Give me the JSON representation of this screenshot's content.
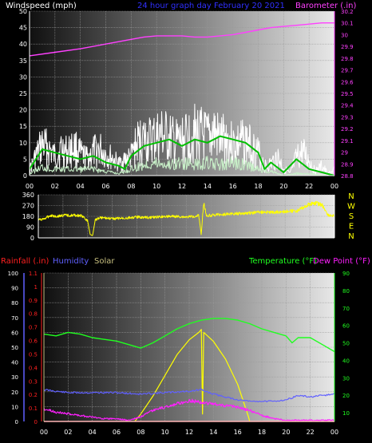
{
  "chart_data": [
    {
      "type": "line",
      "title": "24 hour graph day   February 20 2021",
      "left_label": "Windspeed (mph)",
      "right_label": "Barometer (.in)",
      "x_ticks": [
        "00",
        "02",
        "04",
        "06",
        "08",
        "10",
        "12",
        "14",
        "16",
        "18",
        "20",
        "22",
        "00"
      ],
      "y_left_ticks": [
        "0",
        "5",
        "10",
        "15",
        "20",
        "25",
        "30",
        "35",
        "40",
        "45",
        "50"
      ],
      "y_right_ticks": [
        "28.8",
        "28.9",
        "29",
        "29.1",
        "29.2",
        "29.3",
        "29.4",
        "29.5",
        "29.6",
        "29.7",
        "29.8",
        "29.9",
        "30",
        "30.1",
        "30.2"
      ],
      "ylim_left": [
        0,
        50
      ],
      "ylim_right": [
        28.8,
        30.2
      ],
      "xlim": [
        0,
        24
      ],
      "colors": {
        "gust": "#ffffff",
        "speed_avg": "#00c000",
        "speed_low": "#c8f0c8",
        "barometer": "#ff40ff",
        "axis": "#ff40ff"
      },
      "series": {
        "gust_envelope": {
          "x": [
            0,
            0.5,
            1,
            1.5,
            2,
            2.5,
            3,
            3.5,
            4,
            4.5,
            5,
            5.5,
            6,
            6.5,
            7,
            7.5,
            8,
            8.5,
            9,
            9.5,
            10,
            10.5,
            11,
            11.5,
            12,
            12.5,
            13,
            13.5,
            14,
            14.5,
            15,
            15.5,
            16,
            16.5,
            17,
            17.5,
            18,
            18.5,
            19,
            19.5,
            20,
            20.5,
            21,
            21.5,
            22,
            22.5,
            23,
            23.5,
            24
          ],
          "values": [
            3,
            10,
            16,
            14,
            10,
            14,
            12,
            15,
            11,
            9,
            12,
            14,
            11,
            9,
            6,
            8,
            10,
            17,
            19,
            18,
            20,
            21,
            19,
            17,
            18,
            20,
            22,
            21,
            19,
            23,
            18,
            20,
            16,
            17,
            18,
            15,
            12,
            5,
            6,
            10,
            4,
            1,
            9,
            12,
            8,
            2,
            5,
            1,
            3
          ]
        },
        "speed_avg": {
          "x": [
            0,
            1,
            2,
            3,
            4,
            5,
            6,
            7,
            7.5,
            8,
            9,
            10,
            11,
            12,
            13,
            14,
            15,
            16,
            17,
            18,
            18.5,
            19,
            20,
            21,
            22,
            23,
            24
          ],
          "values": [
            2,
            8,
            7,
            6,
            5,
            6,
            4,
            3,
            2,
            6,
            9,
            10,
            11,
            9,
            11,
            10,
            12,
            11,
            10,
            7,
            2,
            4,
            1,
            5,
            2,
            1,
            0
          ]
        },
        "speed_low": {
          "x": [
            0,
            1,
            2,
            3,
            4,
            5,
            6,
            7,
            8,
            9,
            10,
            11,
            12,
            13,
            14,
            15,
            16,
            17,
            18,
            19,
            20,
            21,
            22,
            23,
            24
          ],
          "values": [
            1,
            4,
            3,
            3,
            3,
            3,
            2,
            1,
            3,
            5,
            6,
            5,
            6,
            5,
            6,
            5,
            6,
            5,
            3,
            2,
            0,
            1,
            1,
            0,
            0
          ]
        },
        "barometer": {
          "x": [
            0,
            2,
            4,
            6,
            8,
            9,
            10,
            11,
            12,
            13,
            14,
            15,
            16,
            17,
            18,
            19,
            20,
            21,
            22,
            23,
            24
          ],
          "values": [
            29.82,
            29.85,
            29.88,
            29.92,
            29.96,
            29.98,
            29.99,
            29.99,
            29.99,
            29.98,
            29.98,
            29.99,
            30.0,
            30.02,
            30.04,
            30.06,
            30.07,
            30.08,
            30.09,
            30.1,
            30.1
          ]
        }
      }
    },
    {
      "type": "line",
      "title": "",
      "y_left_ticks": [
        "0",
        "90",
        "180",
        "270",
        "360"
      ],
      "ylim": [
        0,
        360
      ],
      "right_letters": [
        "N",
        "W",
        "S",
        "E",
        "N"
      ],
      "colors": {
        "direction": "#ffff00",
        "letters": "#ffff00"
      },
      "series": {
        "direction": {
          "x": [
            0,
            0.5,
            1,
            1.5,
            2,
            3,
            3.5,
            4,
            4.2,
            4.4,
            4.6,
            5,
            6,
            7,
            8,
            9,
            10,
            11,
            12,
            12.5,
            13,
            13.2,
            13.4,
            13.6,
            14,
            15,
            16,
            17,
            18,
            19,
            20,
            21,
            22,
            22.5,
            23,
            23.5,
            24
          ],
          "values": [
            160,
            170,
            200,
            190,
            200,
            200,
            195,
            150,
            30,
            20,
            160,
            180,
            170,
            175,
            185,
            180,
            190,
            190,
            185,
            190,
            200,
            30,
            320,
            200,
            200,
            210,
            215,
            220,
            230,
            225,
            235,
            240,
            300,
            310,
            290,
            200,
            195
          ]
        }
      }
    },
    {
      "type": "line",
      "title": "",
      "left_labels": [
        "Rainfall (.in)",
        "Humidity",
        "Solar"
      ],
      "right_labels": [
        "Temperature (°F)",
        "Dew Point (°F)"
      ],
      "x_ticks": [
        "00",
        "02",
        "04",
        "06",
        "08",
        "10",
        "12",
        "14",
        "16",
        "18",
        "20",
        "22",
        "00"
      ],
      "humidity_ticks": [
        "0",
        "10",
        "20",
        "30",
        "40",
        "50",
        "60",
        "70",
        "80",
        "90",
        "100"
      ],
      "rain_ticks": [
        "0",
        "0.1",
        "0.2",
        "0.3",
        "0.4",
        "0.5",
        "0.6",
        "0.7",
        "0.8",
        "0.9",
        "1",
        "1.1"
      ],
      "temp_ticks": [
        "10",
        "20",
        "30",
        "40",
        "50",
        "60",
        "70",
        "80",
        "90"
      ],
      "ylim_humidity": [
        0,
        100
      ],
      "ylim_rain": [
        0,
        1.1
      ],
      "ylim_temp": [
        5,
        90
      ],
      "colors": {
        "rain": "#ff2020",
        "humidity": "#6060ff",
        "solar": "#c8c080",
        "temperature": "#20ff20",
        "dewpoint": "#ff20ff",
        "solar_line": "#ffff00"
      },
      "series": {
        "temperature": {
          "x": [
            0,
            1,
            2,
            3,
            4,
            5,
            6,
            7,
            8,
            9,
            10,
            11,
            12,
            13,
            14,
            15,
            16,
            17,
            18,
            19,
            20,
            20.5,
            21,
            22,
            23,
            24
          ],
          "values": [
            55,
            54,
            56,
            55,
            53,
            52,
            51,
            49,
            47,
            50,
            54,
            58,
            61,
            63,
            64,
            64,
            63,
            61,
            58,
            56,
            54,
            50,
            53,
            53,
            49,
            45
          ]
        },
        "dewpoint": {
          "x": [
            0,
            1,
            2,
            3,
            4,
            5,
            6,
            7,
            8,
            9,
            10,
            11,
            12,
            13,
            14,
            15,
            16,
            17,
            18,
            19,
            20,
            21,
            22,
            23,
            24
          ],
          "values": [
            13,
            11,
            10,
            9,
            8,
            7,
            7,
            6,
            8,
            12,
            14,
            16,
            18,
            17,
            16,
            15,
            14,
            12,
            9,
            7,
            6,
            6,
            6,
            6,
            6
          ]
        },
        "humidity": {
          "x": [
            0,
            2,
            4,
            6,
            8,
            10,
            12,
            13,
            14,
            15,
            16,
            17,
            18,
            19,
            20,
            21,
            22,
            23,
            24
          ],
          "values": [
            22,
            20,
            20,
            20,
            19,
            20,
            21,
            22,
            19,
            17,
            15,
            14,
            14,
            14,
            15,
            18,
            17,
            18,
            19
          ]
        },
        "solar": {
          "x": [
            7.5,
            8,
            9,
            10,
            11,
            12,
            12.8,
            13,
            13.1,
            13.2,
            14,
            15,
            16,
            16.7,
            16.9,
            17
          ],
          "values": [
            0,
            5,
            17,
            31,
            45,
            55,
            60,
            62,
            5,
            60,
            54,
            42,
            25,
            8,
            3,
            0
          ]
        },
        "rain": {
          "x": [
            0,
            24
          ],
          "values": [
            0,
            0
          ]
        }
      }
    }
  ]
}
